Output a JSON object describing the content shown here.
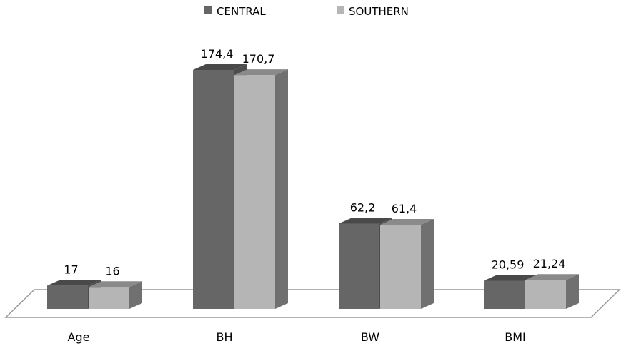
{
  "chart_data": {
    "type": "bar",
    "style": "3d-clustered",
    "categories": [
      "Age",
      "BH",
      "BW",
      "BMI"
    ],
    "series": [
      {
        "name": "CENTRAL",
        "color": "#666666",
        "values": [
          17,
          174.4,
          62.2,
          20.59
        ],
        "labels": [
          "17",
          "174,4",
          "62,2",
          "20,59"
        ]
      },
      {
        "name": "SOUTHERN",
        "color": "#b5b5b5",
        "values": [
          16,
          170.7,
          61.4,
          21.24
        ],
        "labels": [
          "16",
          "170,7",
          "61,4",
          "21,24"
        ]
      }
    ],
    "legend": "top-center",
    "grid": false,
    "ylim": [
      0,
      180
    ]
  }
}
